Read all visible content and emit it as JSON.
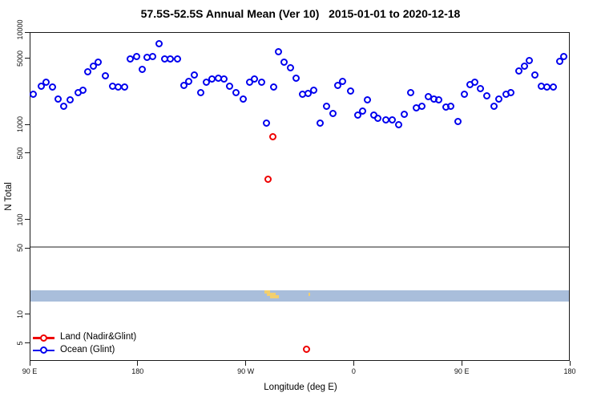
{
  "chart_data": {
    "type": "scatter",
    "title": "57.5S-52.5S Annual Mean (Ver 10)   2015-01-01 to 2020-12-18",
    "xlabel": "Longitude (deg E)",
    "ylabel": "N Total",
    "y_scale": "log10",
    "y_range_approx": [
      3.4,
      10000
    ],
    "y_ticks": [
      {
        "value": 10000,
        "label": "10000"
      },
      {
        "value": 5000,
        "label": "5000"
      },
      {
        "value": 1000,
        "label": "1000"
      },
      {
        "value": 500,
        "label": "500"
      },
      {
        "value": 100,
        "label": "100"
      },
      {
        "value": 50,
        "label": "50"
      },
      {
        "value": 10,
        "label": "10"
      },
      {
        "value": 5,
        "label": "5"
      }
    ],
    "x_axis_note": "longitude axis runs eastward from 90E wrapping past dateline: 90E,180,90W,0,90E,180",
    "x_axis_range_deg": [
      90,
      540
    ],
    "x_ticks": [
      {
        "axis_deg": 90,
        "label": "90 E"
      },
      {
        "axis_deg": 180,
        "label": "180"
      },
      {
        "axis_deg": 270,
        "label": "90 W"
      },
      {
        "axis_deg": 360,
        "label": "0"
      },
      {
        "axis_deg": 450,
        "label": "90 E"
      },
      {
        "axis_deg": 540,
        "label": "180"
      }
    ],
    "reference_line": {
      "value": 50,
      "color": "#8e8e8e"
    },
    "latitude_band_map": {
      "ocean_color": "#a9bedb",
      "land_color": "#f2cf6e",
      "land_segments": [
        {
          "lon_start": 285.6,
          "lon_end": 290.5,
          "row": 0
        },
        {
          "lon_start": 287.5,
          "lon_end": 295.0,
          "row": 1
        },
        {
          "lon_start": 290.3,
          "lon_end": 297.6,
          "row": 2
        },
        {
          "lon_start": 322.4,
          "lon_end": 323.8,
          "row": 1
        }
      ]
    },
    "legend": {
      "entries": [
        {
          "label": "Land (Nadir&Glint)",
          "color": "#ee0000"
        },
        {
          "label": "Ocean (Glint)",
          "color": "#0000ee"
        }
      ]
    },
    "series": [
      {
        "name": "Land (Nadir&Glint)",
        "color": "#ee0000",
        "points": [
          [
            288.9,
            263
          ],
          [
            292.3,
            737
          ],
          [
            320.9,
            4.3
          ]
        ]
      },
      {
        "name": "Ocean (Glint)",
        "color": "#0000ee",
        "points": [
          [
            93.3,
            2070
          ],
          [
            100.0,
            2560
          ],
          [
            104.0,
            2820
          ],
          [
            108.7,
            2510
          ],
          [
            113.4,
            1875
          ],
          [
            118.7,
            1545
          ],
          [
            124.0,
            1805
          ],
          [
            130.1,
            2190
          ],
          [
            134.1,
            2280
          ],
          [
            138.7,
            3565
          ],
          [
            143.4,
            4085
          ],
          [
            147.4,
            4590
          ],
          [
            153.4,
            3235
          ],
          [
            158.8,
            2560
          ],
          [
            164.1,
            2465
          ],
          [
            168.8,
            2465
          ],
          [
            174.1,
            4960
          ],
          [
            179.4,
            5160
          ],
          [
            184.1,
            3780
          ],
          [
            187.5,
            5060
          ],
          [
            192.8,
            5260
          ],
          [
            198.1,
            7180
          ],
          [
            202.8,
            4960
          ],
          [
            207.5,
            4960
          ],
          [
            213.5,
            4960
          ],
          [
            218.8,
            2610
          ],
          [
            222.8,
            2875
          ],
          [
            227.5,
            3300
          ],
          [
            232.8,
            2190
          ],
          [
            237.5,
            2820
          ],
          [
            242.2,
            3050
          ],
          [
            246.9,
            3110
          ],
          [
            252.2,
            3050
          ],
          [
            256.9,
            2560
          ],
          [
            262.2,
            2190
          ],
          [
            267.6,
            1875
          ],
          [
            273.6,
            2820
          ],
          [
            277.6,
            3050
          ],
          [
            283.6,
            2820
          ],
          [
            287.6,
            1045
          ],
          [
            293.6,
            2510
          ],
          [
            297.6,
            5800
          ],
          [
            302.3,
            4590
          ],
          [
            307.6,
            3930
          ],
          [
            312.3,
            3110
          ],
          [
            317.6,
            2070
          ],
          [
            322.3,
            2110
          ],
          [
            327.0,
            2280
          ],
          [
            332.3,
            1045
          ],
          [
            337.6,
            1545
          ],
          [
            343.0,
            1320
          ],
          [
            347.0,
            2610
          ],
          [
            351.0,
            2875
          ],
          [
            357.6,
            2235
          ],
          [
            363.7,
            1270
          ],
          [
            367.7,
            1400
          ],
          [
            371.7,
            1805
          ],
          [
            377.0,
            1270
          ],
          [
            380.4,
            1175
          ],
          [
            387.0,
            1110
          ],
          [
            392.4,
            1110
          ],
          [
            397.7,
            1005
          ],
          [
            402.4,
            1295
          ],
          [
            407.7,
            2190
          ],
          [
            412.4,
            1485
          ],
          [
            417.1,
            1545
          ],
          [
            422.4,
            1950
          ],
          [
            427.1,
            1875
          ],
          [
            431.1,
            1805
          ],
          [
            437.1,
            1515
          ],
          [
            441.1,
            1545
          ],
          [
            447.1,
            1085
          ],
          [
            452.5,
            2070
          ],
          [
            457.1,
            2660
          ],
          [
            461.1,
            2820
          ],
          [
            465.8,
            2415
          ],
          [
            471.1,
            1990
          ],
          [
            477.1,
            1545
          ],
          [
            481.1,
            1840
          ],
          [
            487.2,
            2070
          ],
          [
            491.2,
            2190
          ],
          [
            497.8,
            3635
          ],
          [
            502.5,
            4085
          ],
          [
            506.5,
            4770
          ],
          [
            511.2,
            3360
          ],
          [
            516.5,
            2560
          ],
          [
            521.2,
            2510
          ],
          [
            526.5,
            2510
          ],
          [
            531.9,
            4680
          ],
          [
            535.2,
            5160
          ]
        ]
      }
    ]
  }
}
